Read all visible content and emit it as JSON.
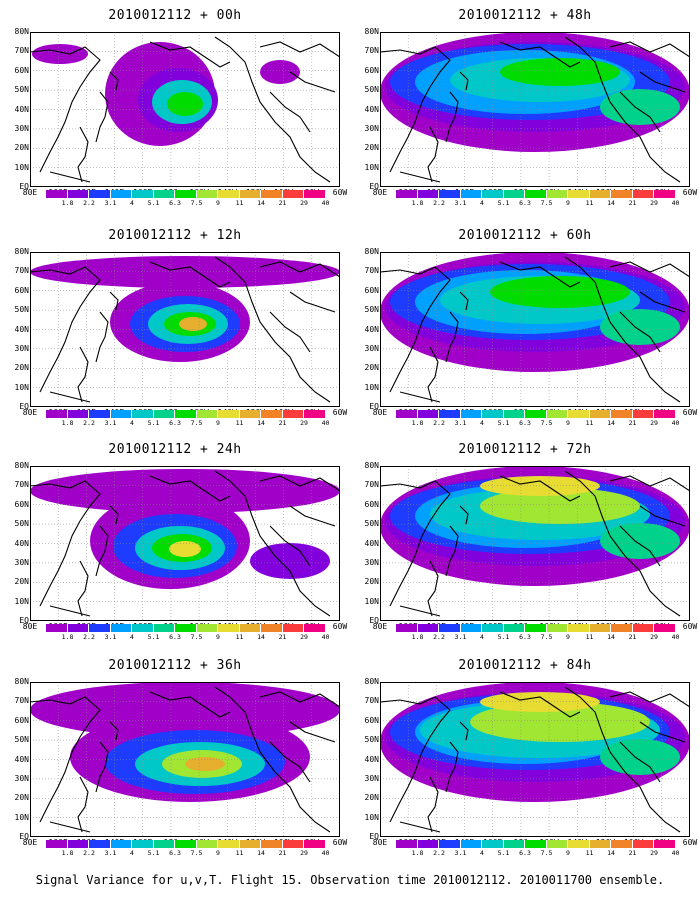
{
  "panels": [
    {
      "title": "2010012112 + 00h",
      "level": 0
    },
    {
      "title": "2010012112 + 48h",
      "level": 4
    },
    {
      "title": "2010012112 + 12h",
      "level": 1
    },
    {
      "title": "2010012112 + 60h",
      "level": 5
    },
    {
      "title": "2010012112 + 24h",
      "level": 2
    },
    {
      "title": "2010012112 + 72h",
      "level": 6
    },
    {
      "title": "2010012112 + 36h",
      "level": 3
    },
    {
      "title": "2010012112 + 84h",
      "level": 7
    }
  ],
  "lat_labels": [
    "80N",
    "70N",
    "60N",
    "50N",
    "40N",
    "30N",
    "20N",
    "10N",
    "EQ"
  ],
  "lon_labels": [
    "80E",
    "100E",
    "120E",
    "140E",
    "160E",
    "180",
    "160W",
    "140W",
    "120W",
    "100W",
    "80W",
    "60W"
  ],
  "colorbar": {
    "labels": [
      "1.8",
      "2.2",
      "3.1",
      "4",
      "5.1",
      "6.3",
      "7.5",
      "9",
      "11",
      "14",
      "21",
      "29",
      "40"
    ],
    "colors": [
      "#a000c8",
      "#8200dc",
      "#1e3cff",
      "#00a0ff",
      "#00c8c8",
      "#00d28c",
      "#00dc00",
      "#a0e632",
      "#e6dc32",
      "#e6af2d",
      "#f08228",
      "#fa3c3c",
      "#f00082"
    ]
  },
  "footer": "Signal Variance for u,v,T. Flight 15. Observation time 2010012112. 2010011700 ensemble."
}
